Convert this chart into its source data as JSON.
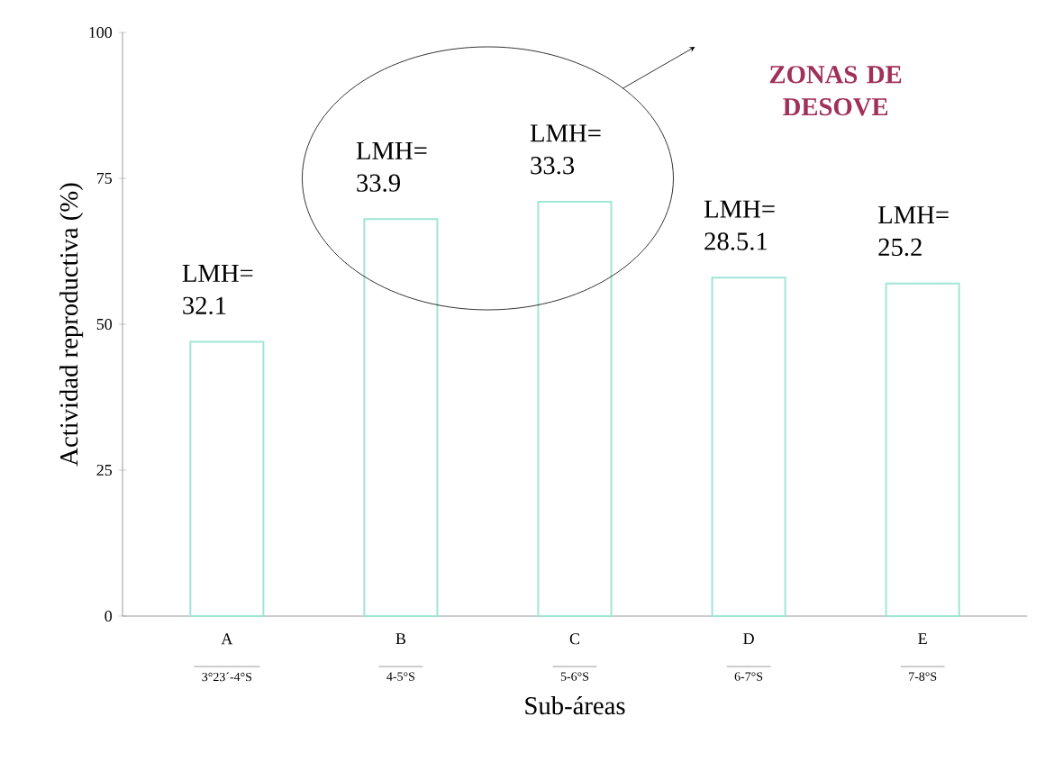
{
  "chart_data": {
    "type": "bar",
    "xlabel": "Sub-áreas",
    "ylabel": "Actividad reproductiva (%)",
    "categories": [
      "A",
      "B",
      "C",
      "D",
      "E"
    ],
    "values": [
      47,
      68,
      71,
      58,
      57
    ],
    "color": "#9fe5d8",
    "ylim": [
      0,
      100
    ],
    "yticks": [
      0,
      25,
      50,
      75,
      100
    ],
    "grid": false,
    "annotations": [
      "LMH= 32.1",
      "LMH= 33.9",
      "LMH= 33.3",
      "LMH= 28.5.1",
      "LMH= 25.2",
      "3°23´-4°S",
      "4-5°S",
      "5-6°S",
      "6-7°S",
      "7-8°S",
      "ZONAS DE DESOVE"
    ]
  }
}
